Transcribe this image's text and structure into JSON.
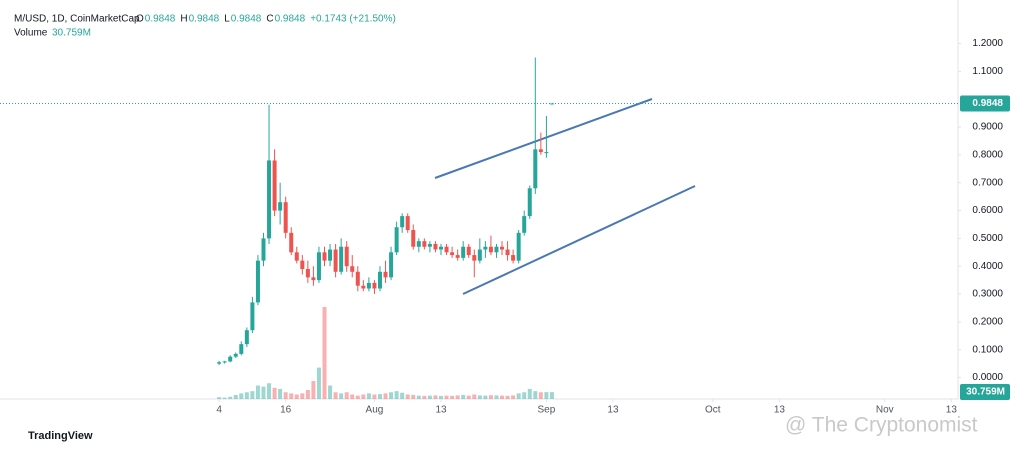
{
  "chart_data": {
    "type": "candlestick",
    "title": "M/USD, 1D, CoinMarketCap",
    "ohlc_letters": [
      "O",
      "H",
      "L",
      "C"
    ],
    "change": "+0.1743 (+21.50%)",
    "volume_title": "Volume",
    "volume_last_label": "30.759M",
    "x": [
      0,
      1,
      2,
      3,
      4,
      5,
      6,
      7,
      8,
      9,
      10,
      11,
      12,
      13,
      14,
      15,
      16,
      17,
      18,
      19,
      20,
      21,
      22,
      23,
      24,
      25,
      26,
      27,
      28,
      29,
      30,
      31,
      32,
      33,
      34,
      35,
      36,
      37,
      38,
      39,
      40,
      41,
      42,
      43,
      44,
      45,
      46,
      47,
      48,
      49,
      50,
      51,
      52,
      53,
      54,
      55,
      56,
      57,
      58,
      59,
      60
    ],
    "open": [
      0.05,
      0.055,
      0.058,
      0.075,
      0.085,
      0.12,
      0.17,
      0.27,
      0.42,
      0.5,
      0.78,
      0.6,
      0.63,
      0.52,
      0.45,
      0.42,
      0.39,
      0.36,
      0.35,
      0.45,
      0.42,
      0.46,
      0.38,
      0.47,
      0.4,
      0.38,
      0.33,
      0.32,
      0.34,
      0.32,
      0.38,
      0.36,
      0.45,
      0.54,
      0.58,
      0.53,
      0.47,
      0.49,
      0.47,
      0.48,
      0.46,
      0.47,
      0.45,
      0.44,
      0.43,
      0.47,
      0.44,
      0.42,
      0.46,
      0.47,
      0.45,
      0.47,
      0.46,
      0.44,
      0.42,
      0.52,
      0.58,
      0.68,
      0.82,
      0.81,
      0.9848
    ],
    "high": [
      0.06,
      0.06,
      0.08,
      0.09,
      0.13,
      0.18,
      0.29,
      0.44,
      0.52,
      0.98,
      0.82,
      0.7,
      0.65,
      0.54,
      0.47,
      0.44,
      0.42,
      0.4,
      0.47,
      0.47,
      0.48,
      0.48,
      0.5,
      0.49,
      0.44,
      0.4,
      0.35,
      0.36,
      0.35,
      0.4,
      0.42,
      0.47,
      0.56,
      0.59,
      0.59,
      0.55,
      0.5,
      0.5,
      0.49,
      0.49,
      0.48,
      0.48,
      0.47,
      0.46,
      0.49,
      0.48,
      0.46,
      0.5,
      0.49,
      0.51,
      0.48,
      0.49,
      0.49,
      0.46,
      0.53,
      0.6,
      0.69,
      1.15,
      0.88,
      0.94,
      0.9848
    ],
    "low": [
      0.045,
      0.05,
      0.055,
      0.07,
      0.08,
      0.11,
      0.16,
      0.26,
      0.4,
      0.48,
      0.58,
      0.55,
      0.5,
      0.44,
      0.41,
      0.37,
      0.34,
      0.33,
      0.34,
      0.4,
      0.4,
      0.36,
      0.37,
      0.38,
      0.36,
      0.31,
      0.31,
      0.31,
      0.3,
      0.31,
      0.34,
      0.35,
      0.44,
      0.52,
      0.52,
      0.46,
      0.45,
      0.46,
      0.45,
      0.45,
      0.44,
      0.44,
      0.43,
      0.42,
      0.42,
      0.43,
      0.36,
      0.41,
      0.43,
      0.44,
      0.43,
      0.44,
      0.42,
      0.41,
      0.41,
      0.51,
      0.57,
      0.66,
      0.8,
      0.79,
      0.9848
    ],
    "close": [
      0.055,
      0.058,
      0.075,
      0.085,
      0.12,
      0.17,
      0.27,
      0.42,
      0.5,
      0.78,
      0.6,
      0.63,
      0.52,
      0.45,
      0.42,
      0.39,
      0.36,
      0.35,
      0.45,
      0.42,
      0.46,
      0.38,
      0.47,
      0.4,
      0.38,
      0.33,
      0.32,
      0.34,
      0.32,
      0.38,
      0.36,
      0.45,
      0.54,
      0.58,
      0.53,
      0.47,
      0.49,
      0.47,
      0.48,
      0.46,
      0.47,
      0.45,
      0.44,
      0.43,
      0.47,
      0.44,
      0.42,
      0.46,
      0.47,
      0.45,
      0.47,
      0.46,
      0.44,
      0.42,
      0.52,
      0.58,
      0.68,
      0.82,
      0.81,
      0.81,
      0.9848
    ],
    "volume": [
      8,
      6,
      10,
      18,
      25,
      30,
      35,
      60,
      55,
      70,
      50,
      45,
      30,
      25,
      20,
      25,
      40,
      80,
      140,
      410,
      60,
      30,
      25,
      30,
      20,
      15,
      20,
      25,
      20,
      22,
      25,
      30,
      35,
      28,
      20,
      18,
      15,
      14,
      15,
      16,
      14,
      15,
      14,
      16,
      18,
      15,
      20,
      16,
      15,
      17,
      16,
      15,
      14,
      16,
      25,
      30,
      45,
      35,
      30,
      30.759,
      30.759
    ],
    "up_color": "#26a69a",
    "down_color": "#ef5350",
    "ylim": [
      -0.0771,
      1.3565
    ],
    "yticks": [
      {
        "value": 0,
        "label": "0.0000"
      },
      {
        "value": 0.1,
        "label": "0.1000"
      },
      {
        "value": 0.2,
        "label": "0.2000"
      },
      {
        "value": 0.3,
        "label": "0.3000"
      },
      {
        "value": 0.4,
        "label": "0.4000"
      },
      {
        "value": 0.5,
        "label": "0.5000"
      },
      {
        "value": 0.6,
        "label": "0.6000"
      },
      {
        "value": 0.7,
        "label": "0.7000"
      },
      {
        "value": 0.8,
        "label": "0.8000"
      },
      {
        "value": 0.9,
        "label": "0.9000"
      },
      {
        "value": 1.1,
        "label": "1.1000"
      },
      {
        "value": 1.2,
        "label": "1.2000"
      }
    ],
    "xlim": [
      -39.5,
      133.2
    ],
    "xticks": [
      {
        "value": 0,
        "label": "4"
      },
      {
        "value": 12,
        "label": "16"
      },
      {
        "value": 28,
        "label": "Aug"
      },
      {
        "value": 40,
        "label": "13"
      },
      {
        "value": 59,
        "label": "Sep"
      },
      {
        "value": 71,
        "label": "13"
      },
      {
        "value": 89,
        "label": "Oct"
      },
      {
        "value": 101,
        "label": "13"
      },
      {
        "value": 120,
        "label": "Nov"
      },
      {
        "value": 132,
        "label": "13"
      }
    ],
    "branding": "TradingView",
    "watermark": "@ The Cryptonomist"
  }
}
